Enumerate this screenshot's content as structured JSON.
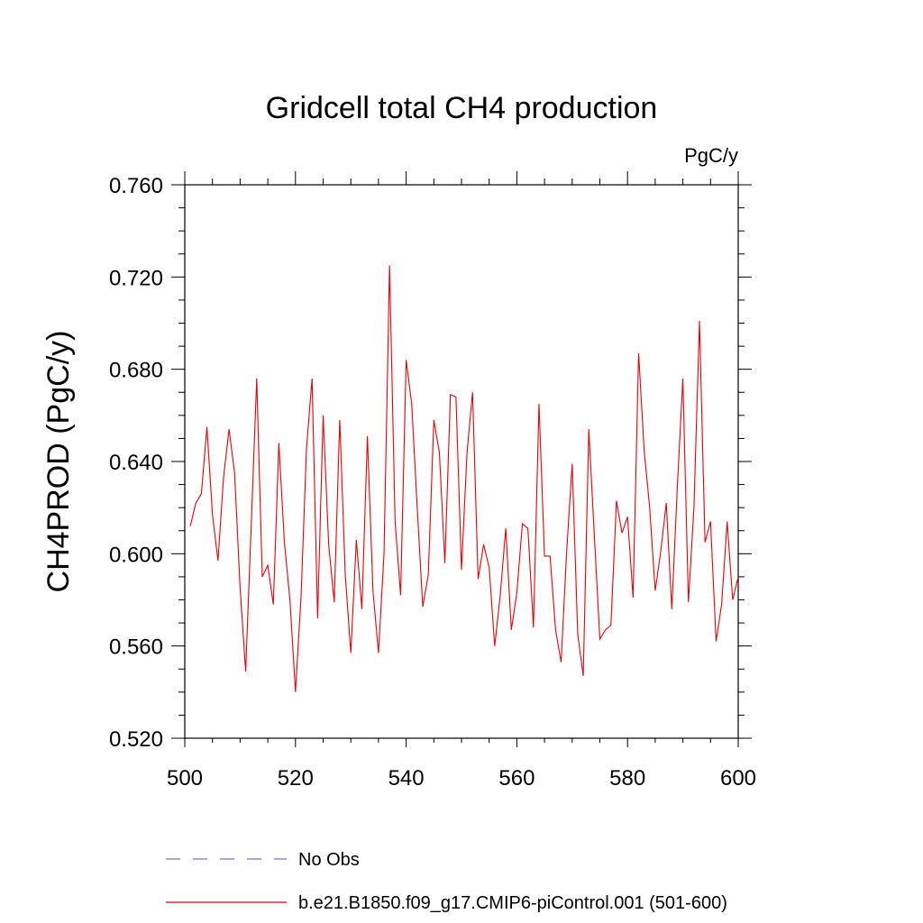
{
  "chart_data": {
    "type": "line",
    "title": "Gridcell total CH4 production",
    "units": "PgC/y",
    "ylabel": "CH4PROD  (PgC/y)",
    "xlabel": "",
    "xlim": [
      500,
      600
    ],
    "ylim": [
      0.52,
      0.76
    ],
    "x_ticks": [
      500,
      520,
      540,
      560,
      580,
      600
    ],
    "x_tick_labels": [
      "500",
      "520",
      "540",
      "560",
      "580",
      "600"
    ],
    "y_ticks": [
      0.52,
      0.56,
      0.6,
      0.64,
      0.68,
      0.72,
      0.76
    ],
    "y_tick_labels": [
      "0.520",
      "0.560",
      "0.600",
      "0.640",
      "0.680",
      "0.720",
      "0.760"
    ],
    "grid": false,
    "legend_placement": "bottom",
    "legend": [
      {
        "label": "No Obs",
        "style": "dashed",
        "color": "#7b72c9"
      },
      {
        "label": "b.e21.B1850.f09_g17.CMIP6-piControl.001 (501-600)",
        "style": "solid",
        "color": "#e8000b"
      }
    ],
    "series": [
      {
        "name": "b.e21.B1850.f09_g17.CMIP6-piControl.001 (501-600)",
        "color": "#e8000b",
        "x": [
          501,
          502,
          503,
          504,
          505,
          506,
          507,
          508,
          509,
          510,
          511,
          512,
          513,
          514,
          515,
          516,
          517,
          518,
          519,
          520,
          521,
          522,
          523,
          524,
          525,
          526,
          527,
          528,
          529,
          530,
          531,
          532,
          533,
          534,
          535,
          536,
          537,
          538,
          539,
          540,
          541,
          542,
          543,
          544,
          545,
          546,
          547,
          548,
          549,
          550,
          551,
          552,
          553,
          554,
          555,
          556,
          557,
          558,
          559,
          560,
          561,
          562,
          563,
          564,
          565,
          566,
          567,
          568,
          569,
          570,
          571,
          572,
          573,
          574,
          575,
          576,
          577,
          578,
          579,
          580,
          581,
          582,
          583,
          584,
          585,
          586,
          587,
          588,
          589,
          590,
          591,
          592,
          593,
          594,
          595,
          596,
          597,
          598,
          599,
          600
        ],
        "values": [
          0.612,
          0.622,
          0.626,
          0.655,
          0.617,
          0.597,
          0.633,
          0.654,
          0.635,
          0.585,
          0.549,
          0.612,
          0.676,
          0.59,
          0.595,
          0.578,
          0.648,
          0.605,
          0.58,
          0.54,
          0.581,
          0.646,
          0.676,
          0.572,
          0.66,
          0.604,
          0.579,
          0.658,
          0.591,
          0.557,
          0.606,
          0.576,
          0.651,
          0.584,
          0.557,
          0.6,
          0.725,
          0.614,
          0.582,
          0.684,
          0.665,
          0.62,
          0.577,
          0.591,
          0.658,
          0.644,
          0.596,
          0.669,
          0.668,
          0.593,
          0.644,
          0.67,
          0.589,
          0.604,
          0.594,
          0.56,
          0.582,
          0.611,
          0.567,
          0.583,
          0.613,
          0.611,
          0.568,
          0.665,
          0.599,
          0.599,
          0.567,
          0.553,
          0.601,
          0.639,
          0.565,
          0.547,
          0.654,
          0.608,
          0.563,
          0.567,
          0.569,
          0.623,
          0.609,
          0.616,
          0.581,
          0.687,
          0.645,
          0.62,
          0.584,
          0.601,
          0.622,
          0.576,
          0.629,
          0.676,
          0.579,
          0.62,
          0.701,
          0.605,
          0.614,
          0.562,
          0.578,
          0.614,
          0.58,
          0.59
        ]
      }
    ]
  }
}
